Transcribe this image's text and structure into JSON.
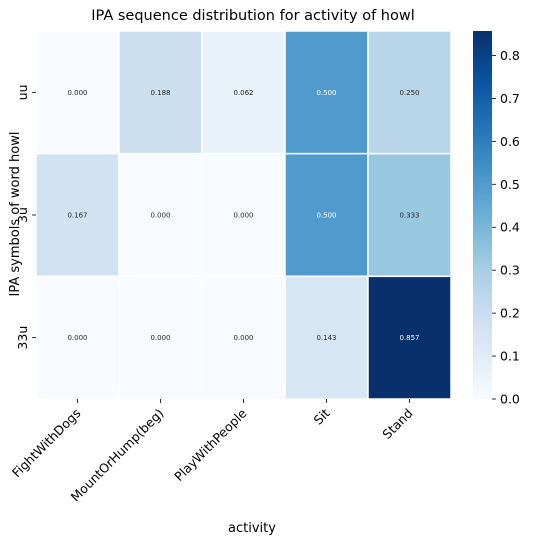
{
  "chart_data": {
    "type": "heatmap",
    "title": "IPA sequence distribution for activity of howl",
    "xlabel": "activity",
    "ylabel": "IPA symbols of word howl",
    "x_categories": [
      "FightWithDogs",
      "MountOrHump(beg)",
      "PlayWithPeople",
      "Sit",
      "Stand"
    ],
    "y_categories": [
      "uu",
      "3u",
      "33u"
    ],
    "values": [
      [
        0.0,
        0.188,
        0.062,
        0.5,
        0.25
      ],
      [
        0.167,
        0.0,
        0.0,
        0.5,
        0.333
      ],
      [
        0.0,
        0.0,
        0.0,
        0.143,
        0.857
      ]
    ],
    "cell_labels": [
      [
        "0.000",
        "0.188",
        "0.062",
        "0.500",
        "0.250"
      ],
      [
        "0.167",
        "0.000",
        "0.000",
        "0.500",
        "0.333"
      ],
      [
        "0.000",
        "0.000",
        "0.000",
        "0.143",
        "0.857"
      ]
    ],
    "colormap": "Blues",
    "colorbar": {
      "range": [
        0,
        0.857
      ],
      "ticks": [
        0.0,
        0.1,
        0.2,
        0.3,
        0.4,
        0.5,
        0.6,
        0.7,
        0.8
      ],
      "tick_labels": [
        "0.0",
        "0.1",
        "0.2",
        "0.3",
        "0.4",
        "0.5",
        "0.6",
        "0.7",
        "0.8"
      ]
    }
  }
}
